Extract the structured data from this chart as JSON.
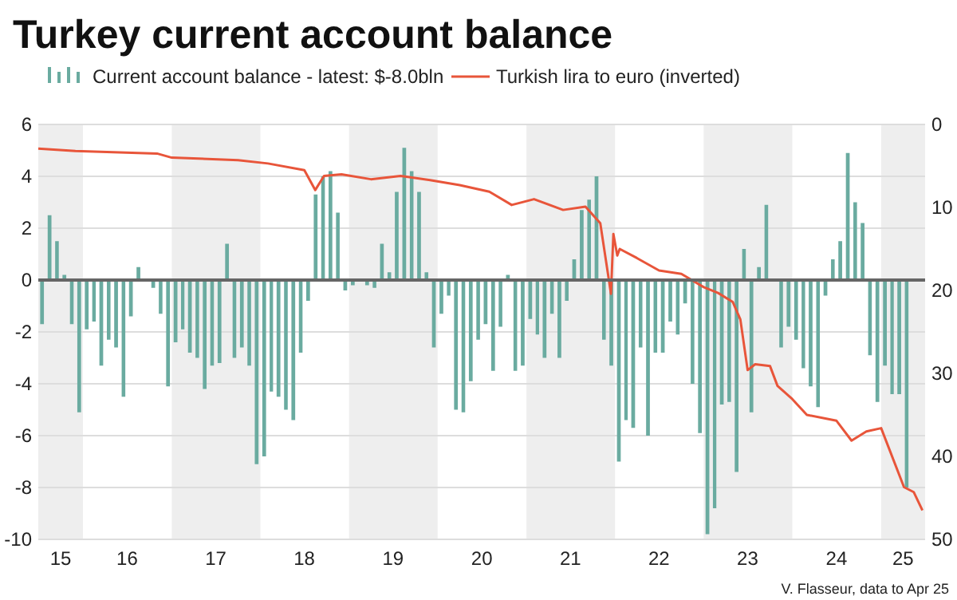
{
  "chart_data": {
    "type": "bar",
    "title": "Turkey current account balance",
    "xlim": [
      "2015-07-01",
      "2025-07-01"
    ],
    "xticks": [
      {
        "value": "2015-10-01",
        "label": "15"
      },
      {
        "value": "2016-07-01",
        "label": "16"
      },
      {
        "value": "2017-07-01",
        "label": "17"
      },
      {
        "value": "2018-07-01",
        "label": "18"
      },
      {
        "value": "2019-07-01",
        "label": "19"
      },
      {
        "value": "2020-07-01",
        "label": "20"
      },
      {
        "value": "2021-07-01",
        "label": "21"
      },
      {
        "value": "2022-07-01",
        "label": "22"
      },
      {
        "value": "2023-07-01",
        "label": "23"
      },
      {
        "value": "2024-07-01",
        "label": "24"
      },
      {
        "value": "2025-04-01",
        "label": "25"
      }
    ],
    "ylim": [
      -10,
      6
    ],
    "yticks": [
      -10,
      -8,
      -6,
      -4,
      -2,
      0,
      2,
      4,
      6
    ],
    "y2lim": [
      50,
      0
    ],
    "y2ticks": [
      0,
      10,
      20,
      30,
      40,
      50
    ],
    "grid": "y",
    "legend": "top",
    "x": [
      "2015-07",
      "2015-08",
      "2015-09",
      "2015-10",
      "2015-11",
      "2015-12",
      "2016-01",
      "2016-02",
      "2016-03",
      "2016-04",
      "2016-05",
      "2016-06",
      "2016-07",
      "2016-08",
      "2016-09",
      "2016-10",
      "2016-11",
      "2016-12",
      "2017-01",
      "2017-02",
      "2017-03",
      "2017-04",
      "2017-05",
      "2017-06",
      "2017-07",
      "2017-08",
      "2017-09",
      "2017-10",
      "2017-11",
      "2017-12",
      "2018-01",
      "2018-02",
      "2018-03",
      "2018-04",
      "2018-05",
      "2018-06",
      "2018-07",
      "2018-08",
      "2018-09",
      "2018-10",
      "2018-11",
      "2018-12",
      "2019-01",
      "2019-02",
      "2019-03",
      "2019-04",
      "2019-05",
      "2019-06",
      "2019-07",
      "2019-08",
      "2019-09",
      "2019-10",
      "2019-11",
      "2019-12",
      "2020-01",
      "2020-02",
      "2020-03",
      "2020-04",
      "2020-05",
      "2020-06",
      "2020-07",
      "2020-08",
      "2020-09",
      "2020-10",
      "2020-11",
      "2020-12",
      "2021-01",
      "2021-02",
      "2021-03",
      "2021-04",
      "2021-05",
      "2021-06",
      "2021-07",
      "2021-08",
      "2021-09",
      "2021-10",
      "2021-11",
      "2021-12",
      "2022-01",
      "2022-02",
      "2022-03",
      "2022-04",
      "2022-05",
      "2022-06",
      "2022-07",
      "2022-08",
      "2022-09",
      "2022-10",
      "2022-11",
      "2022-12",
      "2023-01",
      "2023-02",
      "2023-03",
      "2023-04",
      "2023-05",
      "2023-06",
      "2023-07",
      "2023-08",
      "2023-09",
      "2023-10",
      "2023-11",
      "2023-12",
      "2024-01",
      "2024-02",
      "2024-03",
      "2024-04",
      "2024-05",
      "2024-06",
      "2024-07",
      "2024-08",
      "2024-09",
      "2024-10",
      "2024-11",
      "2024-12",
      "2025-01",
      "2025-02",
      "2025-03",
      "2025-04"
    ],
    "series": [
      {
        "name": "Current account balance - latest: $-8.0bln",
        "color": "#6aaba0",
        "values": [
          -1.7,
          2.5,
          1.5,
          0.2,
          -1.7,
          -5.1,
          -1.9,
          -1.6,
          -3.3,
          -2.3,
          -2.6,
          -4.5,
          -1.4,
          0.5,
          0,
          -0.3,
          -1.3,
          -4.1,
          -2.4,
          -1.9,
          -2.8,
          -3.0,
          -4.2,
          -3.3,
          -3.2,
          1.4,
          -3.0,
          -2.6,
          -3.3,
          -7.1,
          -6.8,
          -4.3,
          -4.5,
          -5.0,
          -5.4,
          -2.8,
          -0.8,
          3.3,
          4.0,
          4.2,
          2.6,
          -0.4,
          -0.2,
          0,
          -0.2,
          -0.3,
          1.4,
          0.3,
          3.4,
          5.1,
          4.2,
          3.4,
          0.3,
          -2.6,
          -1.3,
          -0.6,
          -5.0,
          -5.1,
          -3.9,
          -2.3,
          -1.7,
          -3.5,
          -1.8,
          0.2,
          -3.5,
          -3.3,
          -1.5,
          -2.1,
          -3.0,
          -1.3,
          -3.0,
          -0.8,
          0.8,
          2.7,
          3.1,
          4.0,
          -2.3,
          -3.3,
          -7.0,
          -5.4,
          -5.7,
          -2.6,
          -6.0,
          -2.8,
          -2.8,
          -1.6,
          -2.1,
          -0.9,
          -4.0,
          -5.9,
          -9.8,
          -8.8,
          -4.8,
          -4.7,
          -7.4,
          1.2,
          -5.1,
          0.5,
          2.9,
          0,
          -2.6,
          -1.8,
          -2.3,
          -3.4,
          -4.1,
          -4.9,
          -0.6,
          0.8,
          1.5,
          4.9,
          3.0,
          2.2,
          -2.9,
          -4.7,
          -3.3,
          -4.4,
          -4.4,
          -8.0
        ]
      },
      {
        "type": "line",
        "axis": "y2",
        "name": "Turkish lira to euro (inverted)",
        "color": "#e8553a",
        "x": [
          "2015-07-01",
          "2015-12-01",
          "2016-11-01",
          "2017-01-01",
          "2017-10-01",
          "2018-02-01",
          "2018-07-01",
          "2018-08-15",
          "2018-09-20",
          "2018-12-01",
          "2019-04-01",
          "2019-08-01",
          "2019-12-01",
          "2020-04-01",
          "2020-08-01",
          "2020-11-01",
          "2021-02-01",
          "2021-06-01",
          "2021-09-01",
          "2021-11-01",
          "2021-12-15",
          "2021-12-25",
          "2022-01-10",
          "2022-01-20",
          "2022-04-01",
          "2022-07-01",
          "2022-10-01",
          "2023-01-01",
          "2023-03-01",
          "2023-05-01",
          "2023-06-01",
          "2023-07-01",
          "2023-08-01",
          "2023-10-01",
          "2023-11-01",
          "2024-01-01",
          "2024-03-01",
          "2024-07-01",
          "2024-09-01",
          "2024-11-01",
          "2025-01-01",
          "2025-04-05",
          "2025-05-15",
          "2025-06-20"
        ],
        "values": [
          2.9,
          3.2,
          3.5,
          4.0,
          4.3,
          4.7,
          5.5,
          7.9,
          6.2,
          6.0,
          6.6,
          6.2,
          6.7,
          7.3,
          8.1,
          9.7,
          9.0,
          10.3,
          9.9,
          11.9,
          20.4,
          13.2,
          15.8,
          15.0,
          16.1,
          17.6,
          18.0,
          19.6,
          20.3,
          21.4,
          23.5,
          29.6,
          28.9,
          29.1,
          31.5,
          33.1,
          35.0,
          35.7,
          38.1,
          37.0,
          36.6,
          43.7,
          44.3,
          46.5
        ]
      }
    ],
    "bands": [
      {
        "axis": "x",
        "from": "2015-07-01",
        "to": "2016-01-01",
        "color": "#eeeeee"
      },
      {
        "axis": "x",
        "from": "2017-01-01",
        "to": "2018-01-01",
        "color": "#eeeeee"
      },
      {
        "axis": "x",
        "from": "2019-01-01",
        "to": "2020-01-01",
        "color": "#eeeeee"
      },
      {
        "axis": "x",
        "from": "2021-01-01",
        "to": "2022-01-01",
        "color": "#eeeeee"
      },
      {
        "axis": "x",
        "from": "2023-01-01",
        "to": "2024-01-01",
        "color": "#eeeeee"
      },
      {
        "axis": "x",
        "from": "2025-01-01",
        "to": "2025-07-01",
        "color": "#eeeeee"
      }
    ],
    "ref_lines": [
      {
        "axis": "y",
        "value": 0,
        "color": "#666666"
      }
    ],
    "annotations": [
      "V. Flasseur, data to Apr 25"
    ]
  }
}
